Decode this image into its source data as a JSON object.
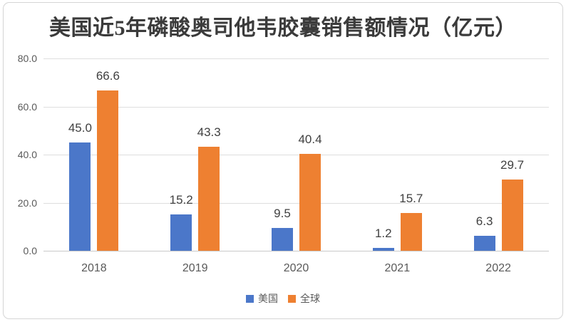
{
  "chart_data": {
    "type": "bar",
    "title": "美国近5年磷酸奥司他韦胶囊销售额情况（亿元）",
    "categories": [
      "2018",
      "2019",
      "2020",
      "2021",
      "2022"
    ],
    "series": [
      {
        "name": "美国",
        "color": "#4b77c9",
        "values": [
          45.0,
          15.2,
          9.5,
          1.2,
          6.3
        ],
        "labels": [
          "45.0",
          "15.2",
          "9.5",
          "1.2",
          "6.3"
        ]
      },
      {
        "name": "全球",
        "color": "#ee8031",
        "values": [
          66.6,
          43.3,
          40.4,
          15.7,
          29.7
        ],
        "labels": [
          "66.6",
          "43.3",
          "40.4",
          "15.7",
          "29.7"
        ]
      }
    ],
    "xlabel": "",
    "ylabel": "",
    "ylim": [
      0,
      80
    ],
    "yticks": [
      "0.0",
      "20.0",
      "40.0",
      "60.0",
      "80.0"
    ],
    "ytick_step": 20,
    "grid": true,
    "legend_position": "bottom"
  },
  "style": {
    "bar_us": "#4b77c9",
    "bar_global": "#ee8031",
    "gridline": "#dedede",
    "axis_line": "#c9c9c9",
    "frame_border": "#d5d5d5",
    "title_color": "#3b3b3b",
    "tick_color": "#595959",
    "value_label_color": "#404040"
  }
}
